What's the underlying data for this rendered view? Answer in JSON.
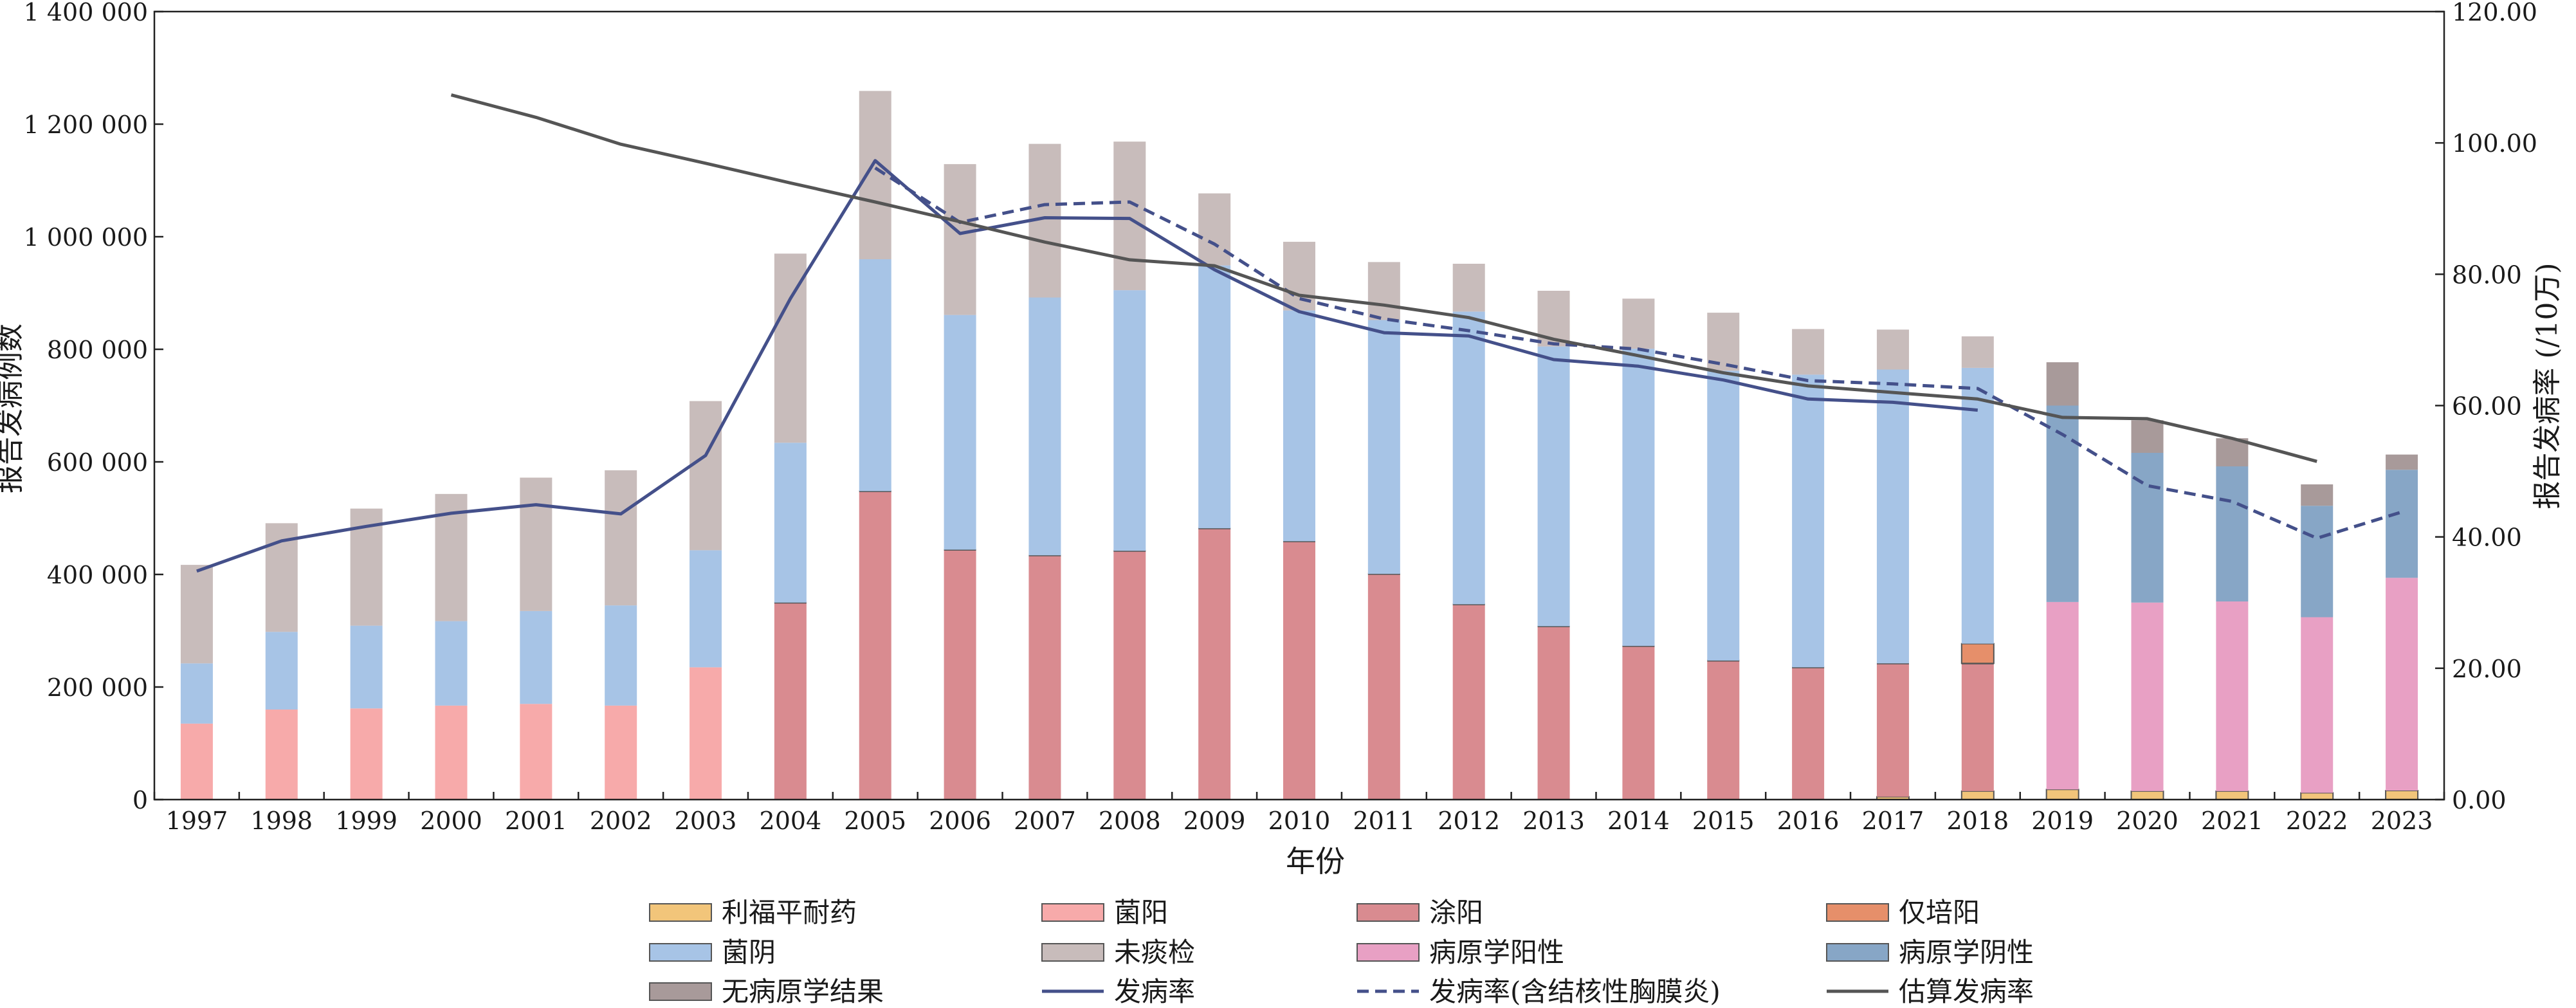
{
  "chart_data": {
    "type": "bar",
    "xlabel": "年份",
    "ylabel_left": "报告发病例数",
    "ylabel_right": "报告发病率 (/10万)",
    "ylim_left": [
      0,
      1400000
    ],
    "ylim_right": [
      0,
      120
    ],
    "y_ticks_left": [
      "0",
      "200 000",
      "400 000",
      "600 000",
      "800 000",
      "1 000 000",
      "1 200 000",
      "1 400 000"
    ],
    "y_ticks_right": [
      "0.00",
      "20.00",
      "40.00",
      "60.00",
      "80.00",
      "100.00",
      "120.00"
    ],
    "categories": [
      "1997",
      "1998",
      "1999",
      "2000",
      "2001",
      "2002",
      "2003",
      "2004",
      "2005",
      "2006",
      "2007",
      "2008",
      "2009",
      "2010",
      "2011",
      "2012",
      "2013",
      "2014",
      "2015",
      "2016",
      "2017",
      "2018",
      "2019",
      "2020",
      "2021",
      "2022",
      "2023"
    ],
    "stack_order": [
      "利福平耐药",
      "菌阳",
      "涂阳",
      "仅培阳",
      "菌阴",
      "未痰检",
      "病原学阳性",
      "病原学阴性",
      "无病原学结果"
    ],
    "series": [
      {
        "name": "利福平耐药",
        "color": "#f2c57a",
        "values": [
          0,
          0,
          0,
          0,
          0,
          0,
          0,
          0,
          0,
          0,
          0,
          0,
          0,
          0,
          0,
          0,
          0,
          0,
          0,
          0,
          5000,
          15000,
          18000,
          15000,
          15000,
          12000,
          16000
        ]
      },
      {
        "name": "菌阳",
        "color": "#f7aaaa",
        "values": [
          135000,
          160000,
          162000,
          167000,
          170000,
          167000,
          235000,
          0,
          0,
          0,
          0,
          0,
          0,
          0,
          0,
          0,
          0,
          0,
          0,
          0,
          0,
          0,
          0,
          0,
          0,
          0,
          0
        ]
      },
      {
        "name": "涂阳",
        "color": "#d98b90",
        "values": [
          0,
          0,
          0,
          0,
          0,
          0,
          0,
          350000,
          548000,
          444000,
          434000,
          442000,
          482000,
          459000,
          401000,
          347000,
          308000,
          273000,
          247000,
          235000,
          237000,
          227000,
          0,
          0,
          0,
          0,
          0
        ]
      },
      {
        "name": "仅培阳",
        "color": "#e68f6a",
        "values": [
          0,
          0,
          0,
          0,
          0,
          0,
          0,
          0,
          0,
          0,
          0,
          0,
          0,
          0,
          0,
          0,
          0,
          0,
          0,
          0,
          0,
          35000,
          0,
          0,
          0,
          0,
          0
        ]
      },
      {
        "name": "菌阴",
        "color": "#a7c4e6",
        "values": [
          107000,
          138000,
          147000,
          150000,
          165000,
          178000,
          208000,
          284000,
          412000,
          417000,
          458000,
          463000,
          467000,
          410000,
          451000,
          520000,
          497000,
          528000,
          515000,
          520000,
          522000,
          490000,
          0,
          0,
          0,
          0,
          0
        ]
      },
      {
        "name": "未痰检",
        "color": "#c8bcbb",
        "values": [
          175000,
          193000,
          208000,
          226000,
          237000,
          240000,
          265000,
          336000,
          299000,
          268000,
          273000,
          264000,
          128000,
          122000,
          103000,
          85000,
          99000,
          89000,
          103000,
          81000,
          71000,
          56000,
          0,
          0,
          0,
          0,
          0
        ]
      },
      {
        "name": "病原学阳性",
        "color": "#e8a0c4",
        "values": [
          0,
          0,
          0,
          0,
          0,
          0,
          0,
          0,
          0,
          0,
          0,
          0,
          0,
          0,
          0,
          0,
          0,
          0,
          0,
          0,
          0,
          0,
          333000,
          335000,
          337000,
          312000,
          378000
        ]
      },
      {
        "name": "病原学阴性",
        "color": "#87a6c6",
        "values": [
          0,
          0,
          0,
          0,
          0,
          0,
          0,
          0,
          0,
          0,
          0,
          0,
          0,
          0,
          0,
          0,
          0,
          0,
          0,
          0,
          0,
          0,
          349000,
          266000,
          240000,
          198000,
          192000
        ]
      },
      {
        "name": "无病原学结果",
        "color": "#a89a9a",
        "values": [
          0,
          0,
          0,
          0,
          0,
          0,
          0,
          0,
          0,
          0,
          0,
          0,
          0,
          0,
          0,
          0,
          0,
          0,
          0,
          0,
          0,
          0,
          77000,
          58000,
          50000,
          38000,
          27000
        ]
      }
    ],
    "lines": [
      {
        "name": "发病率",
        "color": "#44508a",
        "dash": "",
        "values": [
          34.8,
          39.4,
          41.6,
          43.6,
          44.9,
          43.5,
          52.4,
          76.3,
          97.3,
          86.2,
          88.6,
          88.5,
          80.7,
          74.3,
          71.1,
          70.6,
          67.0,
          66.0,
          63.9,
          61.0,
          60.5,
          59.3,
          null,
          null,
          null,
          null,
          null
        ]
      },
      {
        "name": "发病率(含结核性胸膜炎)",
        "color": "#44508a",
        "dash": "18,10",
        "values": [
          null,
          null,
          null,
          null,
          null,
          null,
          null,
          null,
          96.2,
          87.9,
          90.6,
          91.0,
          84.6,
          76.3,
          73.2,
          71.4,
          69.4,
          68.6,
          66.3,
          63.8,
          63.3,
          62.6,
          55.6,
          47.8,
          45.4,
          39.8,
          43.8
        ]
      },
      {
        "name": "估算发病率",
        "color": "#555555",
        "dash": "",
        "values": [
          null,
          null,
          null,
          107.3,
          103.9,
          99.8,
          96.9,
          93.9,
          91.0,
          88.0,
          84.9,
          82.2,
          81.3,
          76.8,
          75.3,
          73.4,
          70.1,
          67.6,
          65.0,
          63.0,
          62.0,
          61.0,
          58.2,
          58.0,
          55.0,
          51.5,
          null
        ]
      }
    ],
    "legend": [
      {
        "label": "利福平耐药",
        "kind": "bar",
        "color": "#f2c57a"
      },
      {
        "label": "菌阳",
        "kind": "bar",
        "color": "#f7aaaa"
      },
      {
        "label": "涂阳",
        "kind": "bar",
        "color": "#d98b90"
      },
      {
        "label": "仅培阳",
        "kind": "bar",
        "color": "#e68f6a"
      },
      {
        "label": "菌阴",
        "kind": "bar",
        "color": "#a7c4e6"
      },
      {
        "label": "未痰检",
        "kind": "bar",
        "color": "#c8bcbb"
      },
      {
        "label": "病原学阳性",
        "kind": "bar",
        "color": "#e8a0c4"
      },
      {
        "label": "病原学阴性",
        "kind": "bar",
        "color": "#87a6c6"
      },
      {
        "label": "无病原学结果",
        "kind": "bar",
        "color": "#a89a9a"
      },
      {
        "label": "发病率",
        "kind": "line",
        "color": "#44508a",
        "dash": ""
      },
      {
        "label": "发病率(含结核性胸膜炎)",
        "kind": "line",
        "color": "#44508a",
        "dash": "18,10"
      },
      {
        "label": "估算发病率",
        "kind": "line",
        "color": "#555555",
        "dash": ""
      }
    ],
    "legend_position": "bottom",
    "grid": false
  }
}
